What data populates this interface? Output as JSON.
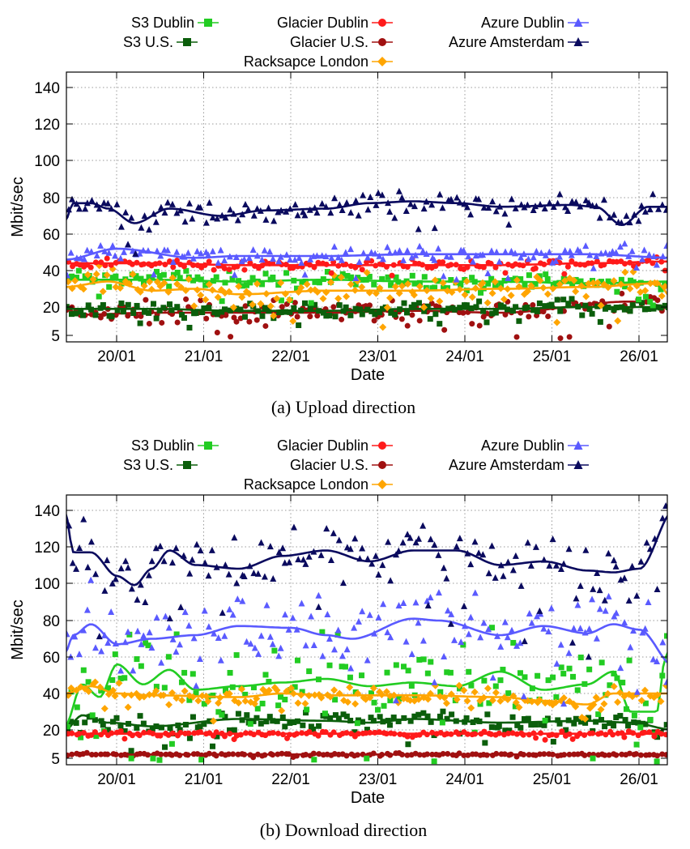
{
  "figure": {
    "series": [
      {
        "name": "S3 Dublin",
        "color": "#22cc22",
        "marker": "square"
      },
      {
        "name": "S3 U.S.",
        "color": "#0b5e0b",
        "marker": "square"
      },
      {
        "name": "Glacier Dublin",
        "color": "#ff1a1a",
        "marker": "circle"
      },
      {
        "name": "Glacier U.S.",
        "color": "#a01010",
        "marker": "circle"
      },
      {
        "name": "Racksapce London",
        "color": "#ffa500",
        "marker": "diamond"
      },
      {
        "name": "Azure Dublin",
        "color": "#5a5aff",
        "marker": "triangle"
      },
      {
        "name": "Azure Amsterdam",
        "color": "#0a0a5e",
        "marker": "triangle"
      }
    ]
  },
  "chart_data": [
    {
      "type": "scatter",
      "caption": "(a)  Upload direction",
      "xlabel": "Date",
      "ylabel": "Mbit/sec",
      "x_ticks": [
        "20/01",
        "21/01",
        "22/01",
        "23/01",
        "24/01",
        "25/01",
        "26/01"
      ],
      "xlim": [
        "19/01 09:00",
        "26/01 09:30"
      ],
      "y_ticks": [
        5,
        20,
        40,
        60,
        80,
        100,
        120,
        140
      ],
      "ylim": [
        3,
        150
      ],
      "grid": true,
      "legend_position": "top",
      "series": [
        {
          "name": "S3 Dublin",
          "trend": [
            [
              0.0,
              35
            ],
            [
              1.0,
              35
            ],
            [
              2.0,
              34
            ],
            [
              3.0,
              35
            ],
            [
              4.0,
              34
            ],
            [
              5.0,
              34
            ],
            [
              6.0,
              33
            ],
            [
              7.0,
              34
            ]
          ],
          "spread": 4
        },
        {
          "name": "S3 U.S.",
          "trend": [
            [
              0.0,
              19
            ],
            [
              1.0,
              19
            ],
            [
              2.0,
              18
            ],
            [
              3.0,
              18
            ],
            [
              4.0,
              19
            ],
            [
              5.0,
              19
            ],
            [
              6.0,
              20
            ],
            [
              7.0,
              20
            ]
          ],
          "spread": 3
        },
        {
          "name": "Glacier Dublin",
          "trend": [
            [
              0.0,
              44
            ],
            [
              1.0,
              44
            ],
            [
              2.0,
              43
            ],
            [
              3.0,
              43
            ],
            [
              4.0,
              43
            ],
            [
              5.0,
              43
            ],
            [
              6.0,
              44
            ],
            [
              7.0,
              45
            ]
          ],
          "spread": 2
        },
        {
          "name": "Glacier U.S.",
          "trend": [
            [
              0.0,
              19
            ],
            [
              0.2,
              16
            ],
            [
              1.0,
              17
            ],
            [
              2.0,
              17
            ],
            [
              3.0,
              17
            ],
            [
              4.0,
              18
            ],
            [
              5.0,
              17
            ],
            [
              6.5,
              23
            ],
            [
              7.0,
              20
            ]
          ],
          "spread": 5
        },
        {
          "name": "Racksapce London",
          "trend": [
            [
              0.0,
              31
            ],
            [
              0.5,
              34
            ],
            [
              1.0,
              29
            ],
            [
              1.5,
              30
            ],
            [
              2.0,
              27
            ],
            [
              3.0,
              29
            ],
            [
              4.0,
              29
            ],
            [
              5.0,
              30
            ],
            [
              6.0,
              31
            ],
            [
              6.8,
              33
            ],
            [
              7.0,
              24
            ]
          ],
          "spread": 6
        },
        {
          "name": "Azure Dublin",
          "trend": [
            [
              0.0,
              46
            ],
            [
              0.6,
              52
            ],
            [
              1.5,
              47
            ],
            [
              2.0,
              48
            ],
            [
              3.0,
              48
            ],
            [
              4.0,
              49
            ],
            [
              5.0,
              49
            ],
            [
              6.0,
              49
            ],
            [
              7.0,
              47
            ]
          ],
          "spread": 4
        },
        {
          "name": "Azure Amsterdam",
          "trend": [
            [
              0.0,
              67
            ],
            [
              0.1,
              77
            ],
            [
              0.3,
              77
            ],
            [
              0.5,
              74
            ],
            [
              0.8,
              66
            ],
            [
              1.2,
              74
            ],
            [
              1.8,
              70
            ],
            [
              2.3,
              73
            ],
            [
              3.0,
              74
            ],
            [
              3.5,
              77
            ],
            [
              4.0,
              78
            ],
            [
              4.5,
              77
            ],
            [
              5.0,
              75
            ],
            [
              5.8,
              76
            ],
            [
              6.1,
              75
            ],
            [
              6.4,
              65
            ],
            [
              6.7,
              75
            ],
            [
              7.0,
              75
            ]
          ],
          "spread": 5
        }
      ]
    },
    {
      "type": "scatter",
      "caption": "(b)  Download direction",
      "xlabel": "Date",
      "ylabel": "Mbit/sec",
      "x_ticks": [
        "20/01",
        "21/01",
        "22/01",
        "23/01",
        "24/01",
        "25/01",
        "26/01"
      ],
      "xlim": [
        "19/01 09:00",
        "26/01 09:30"
      ],
      "y_ticks": [
        5,
        20,
        40,
        60,
        80,
        100,
        120,
        140
      ],
      "ylim": [
        3,
        150
      ],
      "grid": true,
      "legend_position": "top",
      "series": [
        {
          "name": "S3 Dublin",
          "trend": [
            [
              0.0,
              22
            ],
            [
              0.2,
              45
            ],
            [
              0.4,
              38
            ],
            [
              0.6,
              56
            ],
            [
              0.9,
              45
            ],
            [
              1.2,
              53
            ],
            [
              1.5,
              42
            ],
            [
              2.0,
              44
            ],
            [
              2.5,
              46
            ],
            [
              3.0,
              48
            ],
            [
              3.5,
              44
            ],
            [
              4.0,
              46
            ],
            [
              4.5,
              44
            ],
            [
              5.0,
              52
            ],
            [
              5.5,
              42
            ],
            [
              6.0,
              45
            ],
            [
              6.3,
              52
            ],
            [
              6.5,
              30
            ],
            [
              6.8,
              30
            ],
            [
              6.9,
              60
            ],
            [
              7.0,
              72
            ]
          ],
          "spread": 20
        },
        {
          "name": "S3 U.S.",
          "trend": [
            [
              0.0,
              20
            ],
            [
              0.2,
              28
            ],
            [
              0.5,
              24
            ],
            [
              1.0,
              22
            ],
            [
              2.0,
              26
            ],
            [
              3.0,
              25
            ],
            [
              3.5,
              24
            ],
            [
              4.0,
              26
            ],
            [
              5.0,
              24
            ],
            [
              6.0,
              25
            ],
            [
              6.5,
              24
            ],
            [
              7.0,
              20
            ]
          ],
          "spread": 4
        },
        {
          "name": "Glacier Dublin",
          "trend": [
            [
              0.0,
              18
            ],
            [
              7.0,
              18
            ]
          ],
          "spread": 1
        },
        {
          "name": "Glacier U.S.",
          "trend": [
            [
              0.0,
              7
            ],
            [
              7.0,
              7
            ]
          ],
          "spread": 0.6
        },
        {
          "name": "Racksapce London",
          "trend": [
            [
              0.0,
              40
            ],
            [
              0.3,
              44
            ],
            [
              0.6,
              40
            ],
            [
              1.0,
              39
            ],
            [
              2.0,
              38
            ],
            [
              2.5,
              40
            ],
            [
              3.0,
              39
            ],
            [
              4.0,
              39
            ],
            [
              5.0,
              38
            ],
            [
              5.5,
              36
            ],
            [
              6.0,
              34
            ],
            [
              6.3,
              40
            ],
            [
              7.0,
              40
            ]
          ],
          "spread": 4
        },
        {
          "name": "Azure Dublin",
          "trend": [
            [
              0.0,
              62
            ],
            [
              0.1,
              72
            ],
            [
              0.3,
              78
            ],
            [
              0.6,
              67
            ],
            [
              1.0,
              70
            ],
            [
              1.5,
              72
            ],
            [
              2.0,
              77
            ],
            [
              2.6,
              76
            ],
            [
              3.0,
              72
            ],
            [
              3.3,
              70
            ],
            [
              4.0,
              81
            ],
            [
              4.3,
              80
            ],
            [
              5.0,
              72
            ],
            [
              5.5,
              77
            ],
            [
              6.0,
              73
            ],
            [
              6.3,
              78
            ],
            [
              6.6,
              75
            ],
            [
              7.0,
              55
            ]
          ],
          "spread": 15
        },
        {
          "name": "Azure Amsterdam",
          "trend": [
            [
              0.0,
              140
            ],
            [
              0.1,
              117
            ],
            [
              0.3,
              117
            ],
            [
              0.6,
              104
            ],
            [
              0.8,
              99
            ],
            [
              1.0,
              108
            ],
            [
              1.2,
              118
            ],
            [
              1.5,
              110
            ],
            [
              2.0,
              108
            ],
            [
              2.5,
              115
            ],
            [
              3.0,
              118
            ],
            [
              3.5,
              112
            ],
            [
              4.0,
              118
            ],
            [
              4.5,
              118
            ],
            [
              5.0,
              110
            ],
            [
              5.5,
              112
            ],
            [
              6.0,
              107
            ],
            [
              6.3,
              106
            ],
            [
              6.6,
              108
            ],
            [
              7.0,
              140
            ]
          ],
          "spread": 14
        }
      ]
    }
  ]
}
